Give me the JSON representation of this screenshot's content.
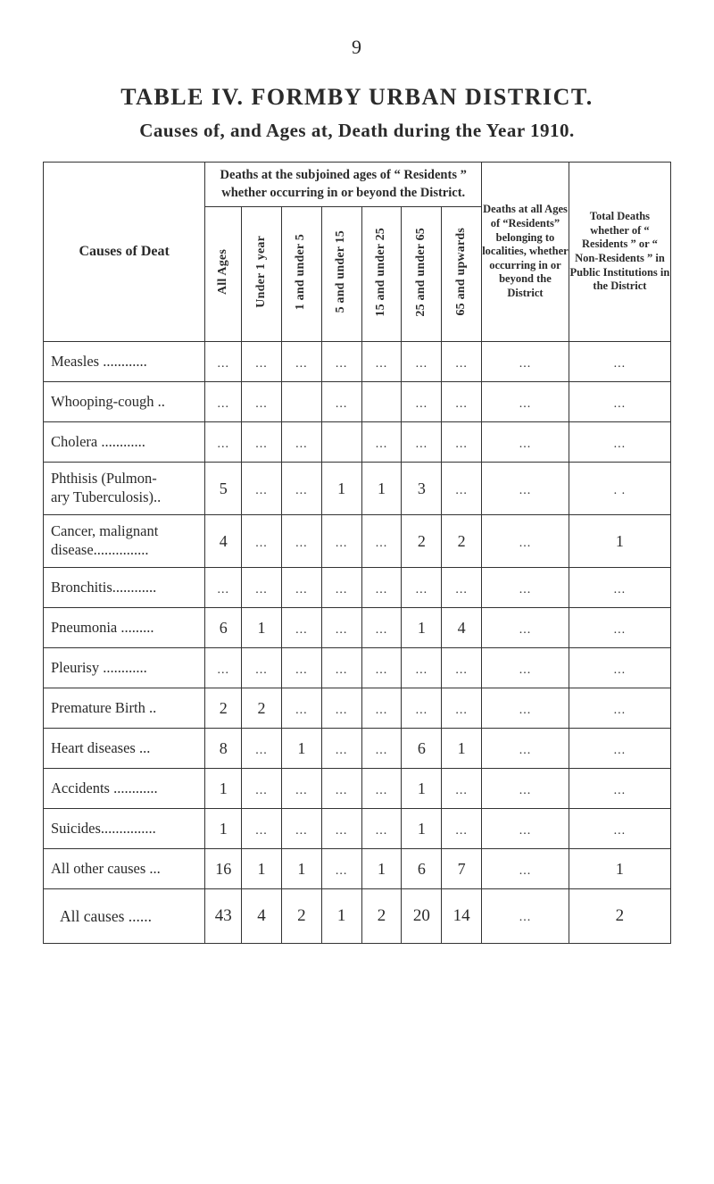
{
  "page_number": "9",
  "title_line1": "TABLE IV.  FORMBY URBAN DISTRICT.",
  "title_line2": "Causes of, and Ages at, Death during the Year 1910.",
  "colors": {
    "background": "#ffffff",
    "text": "#2a2a2a",
    "rule": "#333333"
  },
  "typography": {
    "body_family": "Times New Roman",
    "page_number_size_pt": 16,
    "title1_size_pt": 19,
    "title2_size_pt": 15,
    "header_size_pt": 11,
    "vert_label_size_pt": 10,
    "cell_size_pt": 13
  },
  "header": {
    "causes": "Causes of Deat",
    "subjoined": "Deaths at the subjoined ages of “ Residents ” whether occurring in or beyond the District.",
    "deaths_at_all": "Deaths at all Ages of “Residents” belonging to",
    "localities": "localities, whether occurring in or beyond the District",
    "total_deaths": "Total Deaths whether of “ Residents ” or “ Non-Residents ” in Public Institutions in the District",
    "age_cols": {
      "all_ages": "All Ages",
      "under_1": "Under\n1 year",
      "1_5": "1 and\nunder 5",
      "5_15": "5 and\nunder 15",
      "15_25": "15 and\nunder 25",
      "25_65": "25 and\nunder 65",
      "65_up": "65 and\nupwards"
    }
  },
  "rows": [
    {
      "cause": "Measles  ............",
      "a": "...",
      "b": "...",
      "c": "...",
      "d": "...",
      "e": "...",
      "f": "...",
      "g": "...",
      "loc": "...",
      "tot": "..."
    },
    {
      "cause": "Whooping-cough ..",
      "a": "...",
      "b": "...",
      "c": "",
      "d": "...",
      "e": "",
      "f": "...",
      "g": "...",
      "loc": "...",
      "tot": "..."
    },
    {
      "cause": "Cholera   ............",
      "a": "...",
      "b": "...",
      "c": "...",
      "d": "",
      "e": "...",
      "f": "...",
      "g": "...",
      "loc": "...",
      "tot": "..."
    },
    {
      "cause": "Phthisis (Pulmon-\nary Tuberculosis)..",
      "a": "5",
      "b": "...",
      "c": "...",
      "d": "1",
      "e": "1",
      "f": "3",
      "g": "...",
      "loc": "...",
      "tot": ". .",
      "multiline": true
    },
    {
      "cause": "Cancer, malignant\ndisease...............",
      "a": "4",
      "b": "...",
      "c": "...",
      "d": "...",
      "e": "...",
      "f": "2",
      "g": "2",
      "loc": "...",
      "tot": "1",
      "multiline": true
    },
    {
      "cause": "Bronchitis............",
      "a": "...",
      "b": "...",
      "c": "...",
      "d": "...",
      "e": "...",
      "f": "...",
      "g": "...",
      "loc": "...",
      "tot": "..."
    },
    {
      "cause": "Pneumonia  .........",
      "a": "6",
      "b": "1",
      "c": "...",
      "d": "...",
      "e": "...",
      "f": "1",
      "g": "4",
      "loc": "...",
      "tot": "..."
    },
    {
      "cause": "Pleurisy   ............",
      "a": "...",
      "b": "...",
      "c": "...",
      "d": "...",
      "e": "...",
      "f": "...",
      "g": "...",
      "loc": "...",
      "tot": "..."
    },
    {
      "cause": "Premature Birth ..",
      "a": "2",
      "b": "2",
      "c": "...",
      "d": "...",
      "e": "...",
      "f": "...",
      "g": "...",
      "loc": "...",
      "tot": "..."
    },
    {
      "cause": "Heart diseases   ...",
      "a": "8",
      "b": "...",
      "c": "1",
      "d": "...",
      "e": "...",
      "f": "6",
      "g": "1",
      "loc": "...",
      "tot": "..."
    },
    {
      "cause": "Accidents ............",
      "a": "1",
      "b": "...",
      "c": "...",
      "d": "...",
      "e": "...",
      "f": "1",
      "g": "...",
      "loc": "...",
      "tot": "..."
    },
    {
      "cause": "Suicides...............",
      "a": "1",
      "b": "...",
      "c": "...",
      "d": "...",
      "e": "...",
      "f": "1",
      "g": "...",
      "loc": "...",
      "tot": "..."
    },
    {
      "cause": "All other causes ...",
      "a": "16",
      "b": "1",
      "c": "1",
      "d": "...",
      "e": "1",
      "f": "6",
      "g": "7",
      "loc": "...",
      "tot": "1"
    }
  ],
  "totals": {
    "cause": "All causes ......",
    "a": "43",
    "b": "4",
    "c": "2",
    "d": "1",
    "e": "2",
    "f": "20",
    "g": "14",
    "loc": "...",
    "tot": "2"
  }
}
